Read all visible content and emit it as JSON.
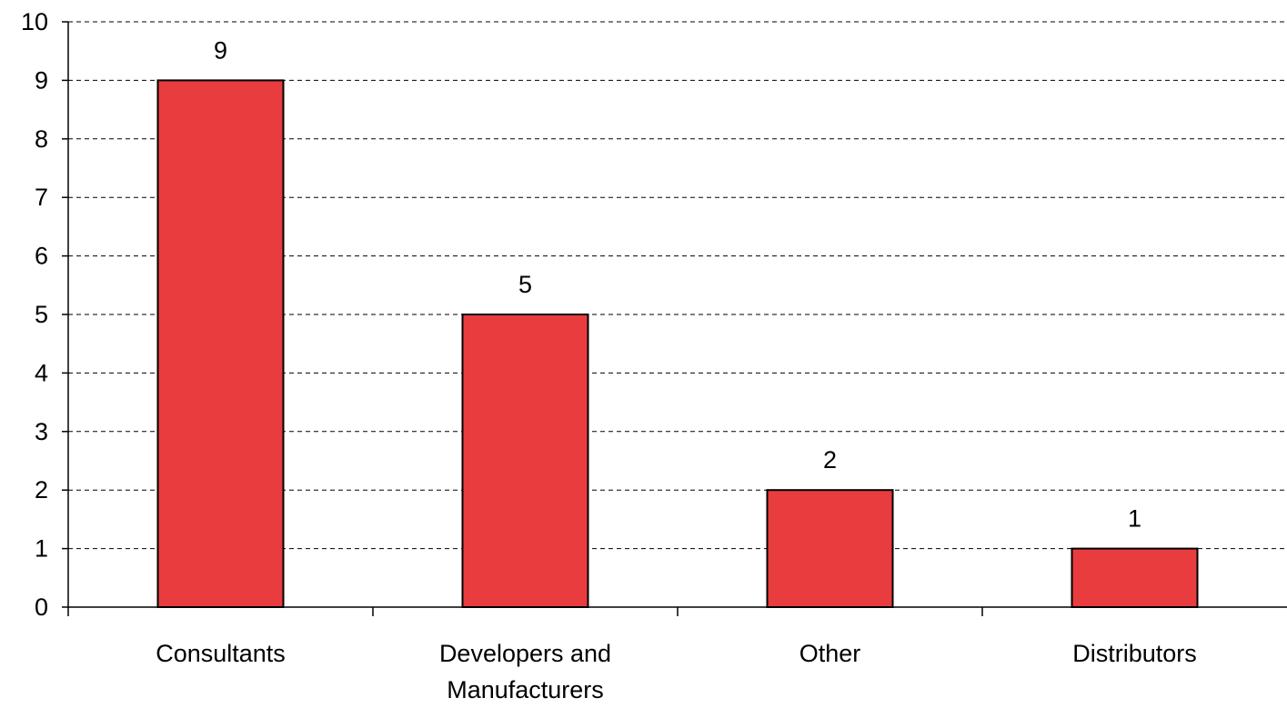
{
  "chart_data": {
    "type": "bar",
    "categories": [
      [
        "Consultants"
      ],
      [
        "Developers and",
        "Manufacturers"
      ],
      [
        "Other"
      ],
      [
        "Distributors"
      ]
    ],
    "values": [
      9,
      5,
      2,
      1
    ],
    "data_labels": [
      "9",
      "5",
      "2",
      "1"
    ],
    "title": "",
    "xlabel": "",
    "ylabel": "",
    "ylim": [
      0,
      10
    ],
    "yticks": [
      "0",
      "1",
      "2",
      "3",
      "4",
      "5",
      "6",
      "7",
      "8",
      "9",
      "10"
    ],
    "grid": "dashed horizontal",
    "legend": "none",
    "colors": {
      "bar_fill": "#e83c3e",
      "bar_stroke": "#000000",
      "grid": "#000000",
      "axis": "#000000"
    }
  }
}
